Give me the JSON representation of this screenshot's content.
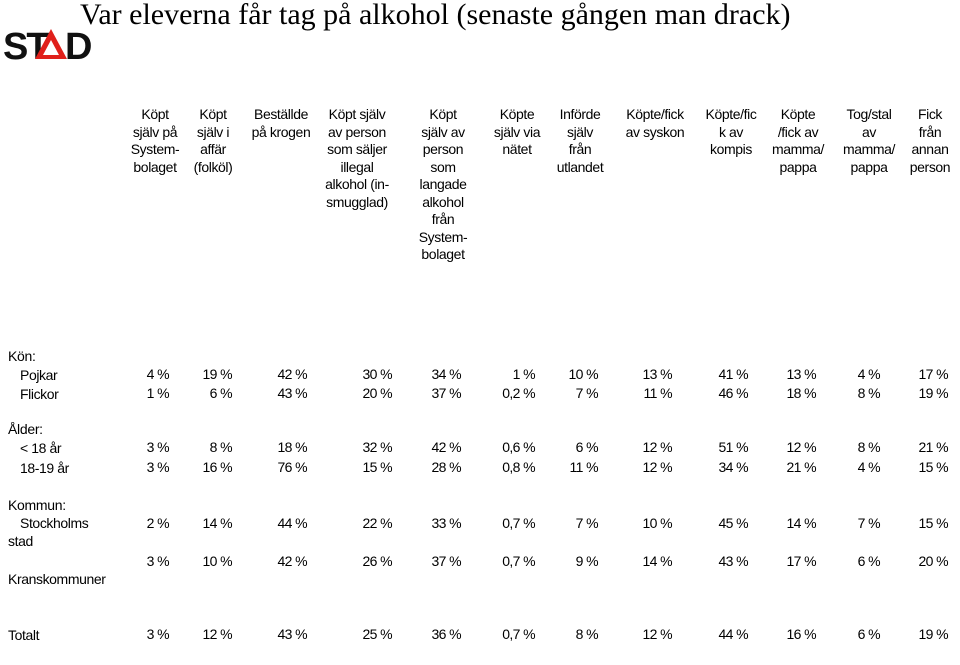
{
  "title": "Var eleverna får tag på alkohol (senaste gången man drack)",
  "logo": {
    "text": "STAD",
    "accent": "#e0201b",
    "ink": "#111111"
  },
  "columns": [
    {
      "label": "Köpt själv på System- bolaget"
    },
    {
      "label": "Köpt själv i affär (folköl)"
    },
    {
      "label": "Beställde på krogen"
    },
    {
      "label": "Köpt själv av person som säljer illegal alkohol (in- smugglad)"
    },
    {
      "label": "Köpt själv av person som langade alkohol från System- bolaget"
    },
    {
      "label": "Köpte själv via nätet"
    },
    {
      "label": "Införde själv från utlandet"
    },
    {
      "label": "Köpte/fick av syskon"
    },
    {
      "label": "Köpte/fic k av kompis"
    },
    {
      "label": "Köpte /fick av mamma/ pappa"
    },
    {
      "label": "Tog/stal av mamma/ pappa"
    },
    {
      "label": "Fick från annan person"
    }
  ],
  "sections": [
    {
      "heading": "Kön:",
      "rows": [
        {
          "label": "Pojkar",
          "values": [
            "4 %",
            "19 %",
            "42 %",
            "30 %",
            "34 %",
            "1 %",
            "10 %",
            "13 %",
            "41 %",
            "13 %",
            "4 %",
            "17 %"
          ]
        },
        {
          "label": "Flickor",
          "values": [
            "1 %",
            "6 %",
            "43 %",
            "20 %",
            "37 %",
            "0,2 %",
            "7 %",
            "11 %",
            "46 %",
            "18 %",
            "8 %",
            "19 %"
          ]
        }
      ]
    },
    {
      "heading": "Ålder:",
      "rows": [
        {
          "label": "< 18 år",
          "values": [
            "3 %",
            "8 %",
            "18 %",
            "32 %",
            "42 %",
            "0,6 %",
            "6 %",
            "12 %",
            "51 %",
            "12 %",
            "8 %",
            "21 %"
          ]
        },
        {
          "label": "18-19 år",
          "values": [
            "3 %",
            "16 %",
            "76 %",
            "15 %",
            "28 %",
            "0,8 %",
            "11 %",
            "12 %",
            "34 %",
            "21 %",
            "4 %",
            "15 %"
          ]
        }
      ]
    },
    {
      "heading": "Kommun:",
      "rows": [
        {
          "label": "Stockholms stad",
          "values": [
            "2 %",
            "14 %",
            "44 %",
            "22 %",
            "33 %",
            "0,7 %",
            "7 %",
            "10 %",
            "45 %",
            "14 %",
            "7 %",
            "15 %"
          ]
        },
        {
          "label": "Kranskommuner",
          "values": [
            "3 %",
            "10 %",
            "42 %",
            "26 %",
            "37 %",
            "0,7 %",
            "9 %",
            "14 %",
            "43 %",
            "17 %",
            "6 %",
            "20 %"
          ]
        }
      ]
    }
  ],
  "total": {
    "label": "Totalt",
    "values": [
      "3 %",
      "12 %",
      "43 %",
      "25 %",
      "36 %",
      "0,7 %",
      "8 %",
      "12 %",
      "44 %",
      "16 %",
      "6 %",
      "19 %"
    ]
  }
}
